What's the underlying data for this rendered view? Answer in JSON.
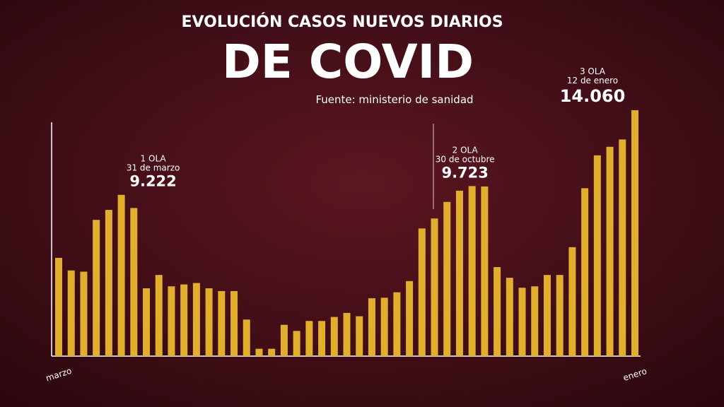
{
  "chart_data": {
    "type": "bar",
    "subtitle": "EVOLUCIÓN CASOS NUEVOS DIARIOS",
    "title": "DE COVID",
    "source": "Fuente: ministerio de sanidad",
    "color": "#e2ae2e",
    "categories": [
      "marzo",
      null,
      null,
      null,
      null,
      null,
      null,
      null,
      null,
      null,
      null,
      null,
      null,
      null,
      null,
      null,
      null,
      null,
      null,
      null,
      null,
      null,
      null,
      null,
      null,
      null,
      null,
      null,
      null,
      null,
      null,
      null,
      null,
      null,
      null,
      null,
      null,
      null,
      null,
      null,
      null,
      null,
      null,
      null,
      null,
      null,
      "enero"
    ],
    "values": [
      5620,
      4900,
      4830,
      7790,
      8360,
      9222,
      8470,
      3880,
      4640,
      3990,
      4100,
      4180,
      3880,
      3720,
      3720,
      2090,
      420,
      420,
      1790,
      1440,
      2010,
      2010,
      2240,
      2470,
      2280,
      3310,
      3340,
      3650,
      4290,
      7300,
      7870,
      8820,
      9460,
      9723,
      9700,
      5090,
      4480,
      3910,
      3990,
      4640,
      4640,
      6230,
      9600,
      11480,
      11970,
      12390,
      14060
    ],
    "value_labels": [
      null,
      null,
      null,
      null,
      null,
      "9.222",
      null,
      null,
      null,
      null,
      null,
      null,
      null,
      null,
      null,
      null,
      null,
      null,
      null,
      null,
      null,
      null,
      null,
      null,
      null,
      null,
      null,
      null,
      null,
      null,
      null,
      null,
      null,
      "9.723",
      null,
      null,
      null,
      null,
      null,
      null,
      null,
      null,
      null,
      null,
      null,
      null,
      "14.060"
    ],
    "annotations": [
      {
        "text": "1 OLA",
        "date": "31 de marzo"
      },
      {
        "text": "2 OLA",
        "date": "30 de octubre"
      },
      {
        "text": "3 OLA",
        "date": "12 de enero"
      }
    ]
  }
}
